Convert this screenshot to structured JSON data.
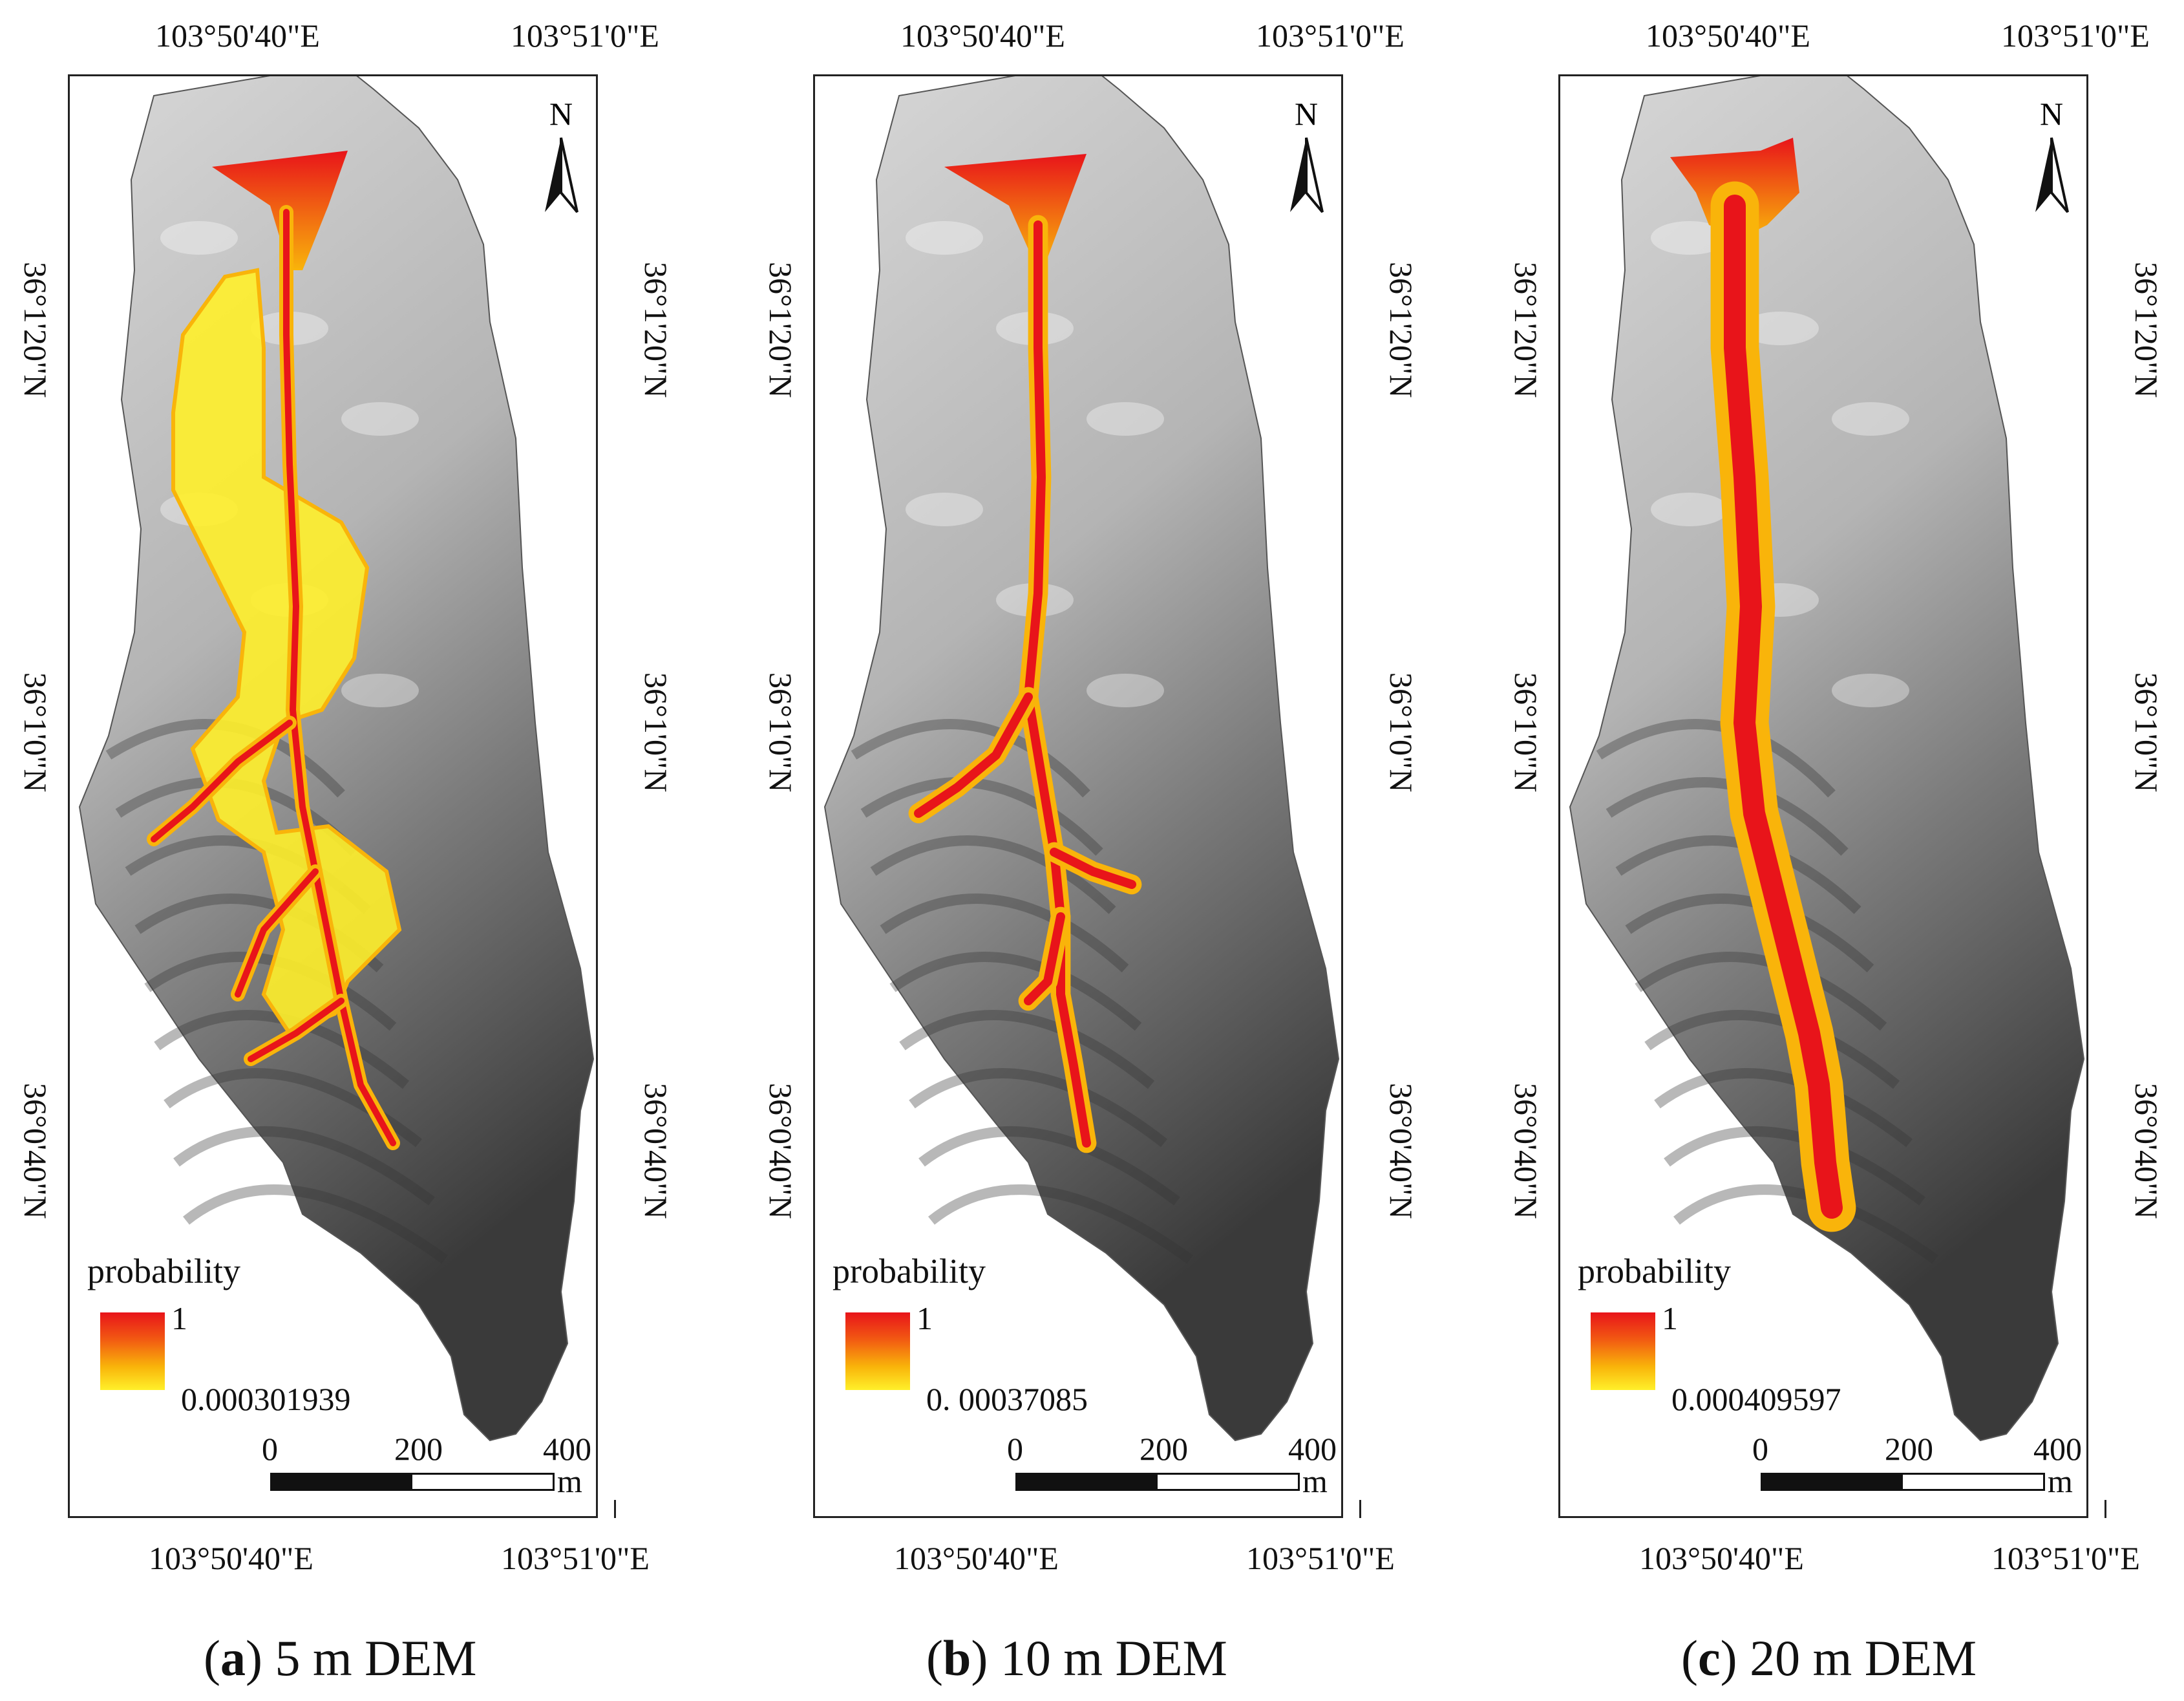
{
  "colors": {
    "prob_high": "#e8141a",
    "prob_mid": "#f9b40a",
    "prob_low": "#fff02a",
    "dem_light": "#d8d8d8",
    "dem_dark": "#3a3a3a"
  },
  "panels": [
    {
      "top_lon_left": "103°50'40\"E",
      "top_lon_right": "103°51'0\"E",
      "bottom_lon_left": "103°50'40\"E",
      "bottom_lon_right": "103°51'0\"E",
      "lat_left": [
        "36°1'20\"N",
        "36°1'0\"N",
        "36°0'40\"N"
      ],
      "lat_right": [
        "36°1'20\"N",
        "36°1'0\"N",
        "36°0'40\"N"
      ],
      "north": "N",
      "legend_title": "probability",
      "legend_max": "1",
      "legend_min": "0.000301939",
      "scale_ticks": [
        "0",
        "200",
        "400"
      ],
      "scale_unit": "m",
      "caption_letter": "a",
      "caption_text": " 5 m DEM"
    },
    {
      "top_lon_left": "103°50'40\"E",
      "top_lon_right": "103°51'0\"E",
      "bottom_lon_left": "103°50'40\"E",
      "bottom_lon_right": "103°51'0\"E",
      "lat_left": [
        "36°1'20\"N",
        "36°1'0\"N",
        "36°0'40\"N"
      ],
      "lat_right": [
        "36°1'20\"N",
        "36°1'0\"N",
        "36°0'40\"N"
      ],
      "north": "N",
      "legend_title": "probability",
      "legend_max": "1",
      "legend_min": "0. 00037085",
      "scale_ticks": [
        "0",
        "200",
        "400"
      ],
      "scale_unit": "m",
      "caption_letter": "b",
      "caption_text": " 10 m DEM"
    },
    {
      "top_lon_left": "103°50'40\"E",
      "top_lon_right": "103°51'0\"E",
      "bottom_lon_left": "103°50'40\"E",
      "bottom_lon_right": "103°51'0\"E",
      "lat_left": [
        "36°1'20\"N",
        "36°1'0\"N",
        "36°0'40\"N"
      ],
      "lat_right": [
        "36°1'20\"N",
        "36°1'0\"N",
        "36°0'40\"N"
      ],
      "north": "N",
      "legend_title": "probability",
      "legend_max": "1",
      "legend_min": "0.000409597",
      "scale_ticks": [
        "0",
        "200",
        "400"
      ],
      "scale_unit": "m",
      "caption_letter": "c",
      "caption_text": " 20 m DEM"
    }
  ]
}
